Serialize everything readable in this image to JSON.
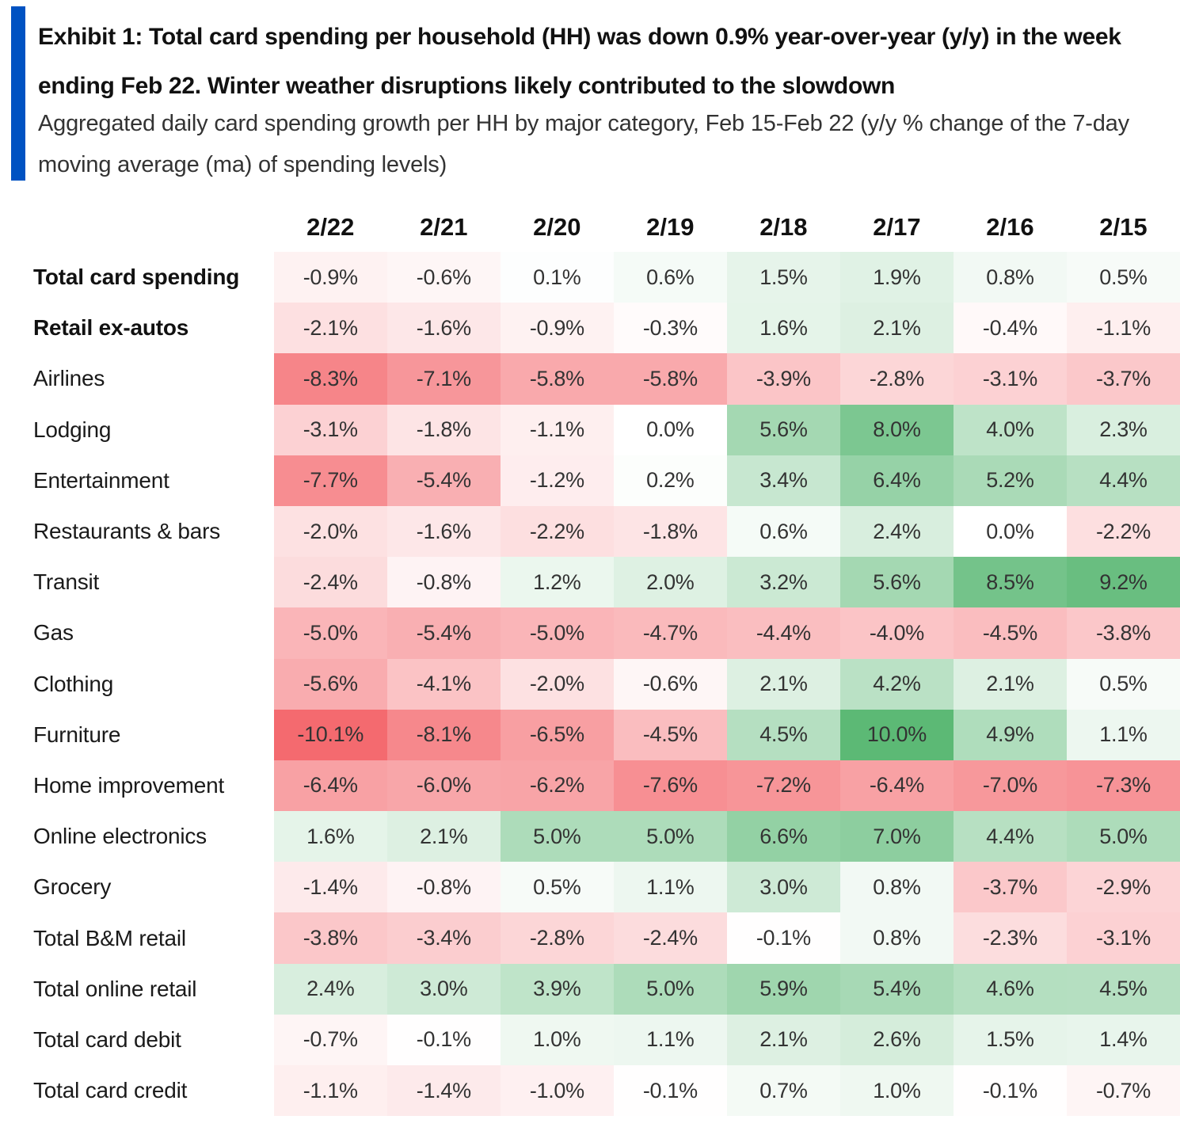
{
  "title": "Exhibit 1: Total card spending per household (HH) was down 0.9% year-over-year (y/y) in the week ending Feb 22. Winter weather disruptions likely contributed to the slowdown",
  "subtitle": "Aggregated daily card spending growth per HH by major category, Feb 15-Feb 22 (y/y % change of the 7-day moving average (ma) of spending levels)",
  "colors": {
    "accent": "#0052c2",
    "negative_max": "#f46a6f",
    "positive_max": "#5ab874",
    "neutral": "#ffffff"
  },
  "chart_data": {
    "type": "heatmap",
    "value_unit": "%",
    "columns": [
      "2/22",
      "2/21",
      "2/20",
      "2/19",
      "2/18",
      "2/17",
      "2/16",
      "2/15"
    ],
    "rows": [
      {
        "label": "Total card spending",
        "bold": true,
        "values": [
          -0.9,
          -0.6,
          0.1,
          0.6,
          1.5,
          1.9,
          0.8,
          0.5
        ]
      },
      {
        "label": "Retail ex-autos",
        "bold": true,
        "values": [
          -2.1,
          -1.6,
          -0.9,
          -0.3,
          1.6,
          2.1,
          -0.4,
          -1.1
        ]
      },
      {
        "label": "Airlines",
        "bold": false,
        "values": [
          -8.3,
          -7.1,
          -5.8,
          -5.8,
          -3.9,
          -2.8,
          -3.1,
          -3.7
        ]
      },
      {
        "label": "Lodging",
        "bold": false,
        "values": [
          -3.1,
          -1.8,
          -1.1,
          0.0,
          5.6,
          8.0,
          4.0,
          2.3
        ]
      },
      {
        "label": "Entertainment",
        "bold": false,
        "values": [
          -7.7,
          -5.4,
          -1.2,
          0.2,
          3.4,
          6.4,
          5.2,
          4.4
        ]
      },
      {
        "label": "Restaurants & bars",
        "bold": false,
        "values": [
          -2.0,
          -1.6,
          -2.2,
          -1.8,
          0.6,
          2.4,
          0.0,
          -2.2
        ]
      },
      {
        "label": "Transit",
        "bold": false,
        "values": [
          -2.4,
          -0.8,
          1.2,
          2.0,
          3.2,
          5.6,
          8.5,
          9.2
        ]
      },
      {
        "label": "Gas",
        "bold": false,
        "values": [
          -5.0,
          -5.4,
          -5.0,
          -4.7,
          -4.4,
          -4.0,
          -4.5,
          -3.8
        ]
      },
      {
        "label": "Clothing",
        "bold": false,
        "values": [
          -5.6,
          -4.1,
          -2.0,
          -0.6,
          2.1,
          4.2,
          2.1,
          0.5
        ]
      },
      {
        "label": "Furniture",
        "bold": false,
        "values": [
          -10.1,
          -8.1,
          -6.5,
          -4.5,
          4.5,
          10.0,
          4.9,
          1.1
        ]
      },
      {
        "label": "Home improvement",
        "bold": false,
        "values": [
          -6.4,
          -6.0,
          -6.2,
          -7.6,
          -7.2,
          -6.4,
          -7.0,
          -7.3
        ]
      },
      {
        "label": "Online electronics",
        "bold": false,
        "values": [
          1.6,
          2.1,
          5.0,
          5.0,
          6.6,
          7.0,
          4.4,
          5.0
        ]
      },
      {
        "label": "Grocery",
        "bold": false,
        "values": [
          -1.4,
          -0.8,
          0.5,
          1.1,
          3.0,
          0.8,
          -3.7,
          -2.9
        ]
      },
      {
        "label": "Total B&M retail",
        "bold": false,
        "values": [
          -3.8,
          -3.4,
          -2.8,
          -2.4,
          -0.1,
          0.8,
          -2.3,
          -3.1
        ]
      },
      {
        "label": "Total online retail",
        "bold": false,
        "values": [
          2.4,
          3.0,
          3.9,
          5.0,
          5.9,
          5.4,
          4.6,
          4.5
        ]
      },
      {
        "label": "Total card debit",
        "bold": false,
        "values": [
          -0.7,
          -0.1,
          1.0,
          1.1,
          2.1,
          2.6,
          1.5,
          1.4
        ]
      },
      {
        "label": "Total card credit",
        "bold": false,
        "values": [
          -1.1,
          -1.4,
          -1.0,
          -0.1,
          0.7,
          1.0,
          -0.1,
          -0.7
        ]
      }
    ]
  }
}
